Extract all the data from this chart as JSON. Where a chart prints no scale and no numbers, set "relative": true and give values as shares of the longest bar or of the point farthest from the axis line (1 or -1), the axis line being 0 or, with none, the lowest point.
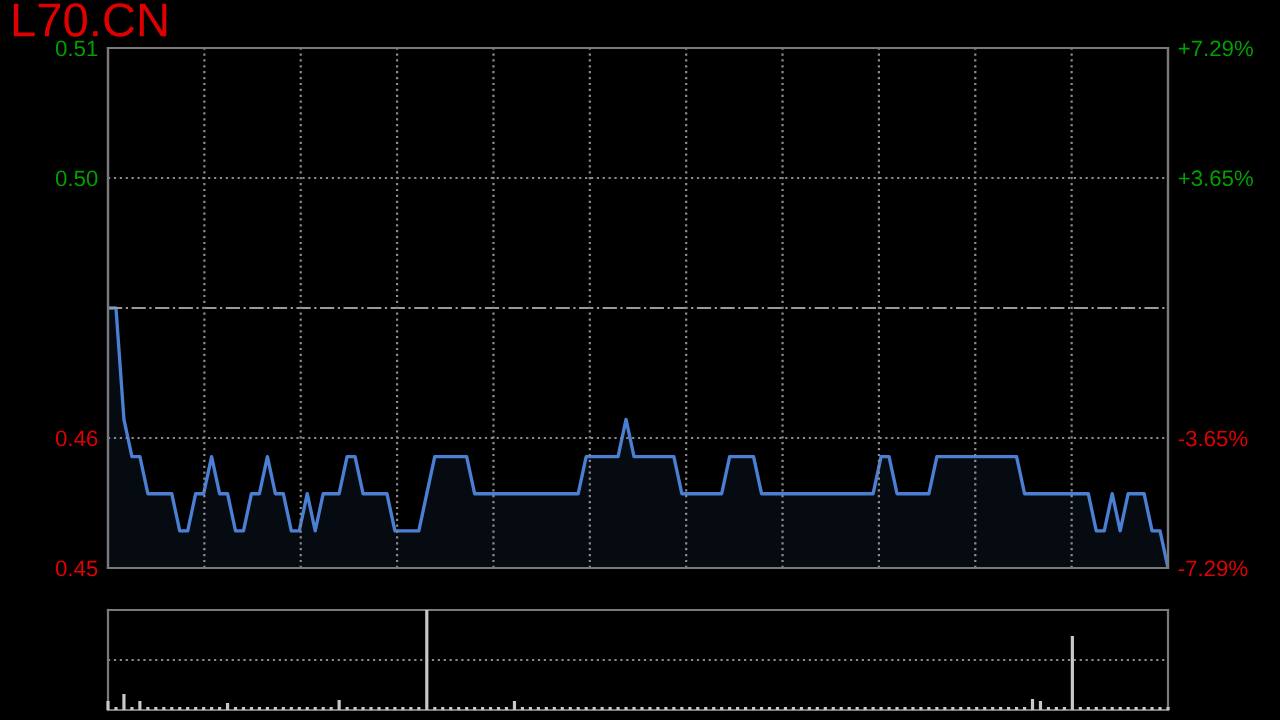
{
  "chart_data": [
    {
      "type": "area",
      "title": "L70.CN",
      "grid": true,
      "categories": [
        null,
        null,
        null,
        null,
        null,
        null,
        null,
        null,
        null,
        null,
        null,
        null,
        null,
        null,
        null,
        null,
        null,
        null,
        null,
        null,
        null,
        null,
        null,
        null,
        null,
        null,
        null,
        null,
        null,
        null,
        null,
        null,
        null,
        null,
        null,
        null,
        null,
        null,
        null,
        null,
        null,
        null,
        null,
        null,
        null,
        null,
        null,
        null,
        null,
        null,
        null,
        null,
        null,
        null,
        null,
        null,
        null,
        null,
        null,
        null,
        null,
        null,
        null,
        null,
        null,
        null,
        null,
        null,
        null,
        null,
        null,
        null,
        null,
        null,
        null,
        null,
        null,
        null,
        null,
        null,
        null,
        null,
        null,
        null,
        null,
        null,
        null,
        null,
        null,
        null,
        null,
        null,
        null,
        null,
        null,
        null,
        null,
        null,
        null,
        null,
        null,
        null,
        null,
        null,
        null,
        null,
        null,
        null,
        null,
        null,
        null,
        null,
        null,
        null,
        null,
        null,
        null,
        null,
        null,
        null,
        null,
        null,
        null,
        null,
        null,
        null,
        null,
        null,
        null,
        null,
        null,
        null,
        null,
        null
      ],
      "ylim": [
        0.445,
        0.515
      ],
      "yticks": [
        {
          "value": 0.445,
          "label": "0.45"
        },
        {
          "value": 0.4625,
          "label": "0.46"
        },
        {
          "value": 0.48,
          "label": null
        },
        {
          "value": 0.4975,
          "label": "0.50"
        },
        {
          "value": 0.515,
          "label": "0.51"
        }
      ],
      "y2lim": [
        -7.29,
        7.29
      ],
      "y2ticks": [
        {
          "value": -7.29,
          "label": "-7.29%"
        },
        {
          "value": -3.65,
          "label": "-3.65%"
        },
        {
          "value": 3.65,
          "label": "+3.65%"
        },
        {
          "value": 7.29,
          "label": "+7.29%"
        }
      ],
      "ref_lines": [
        {
          "axis": "y",
          "value": 0.48,
          "label": null,
          "color": "#9a9a9a",
          "line_style": "dashdot"
        }
      ],
      "series": [
        {
          "color": "#4a7fd4",
          "values": [
            0.48,
            0.48,
            0.465,
            0.46,
            0.46,
            0.455,
            0.455,
            0.455,
            0.455,
            0.45,
            0.45,
            0.455,
            0.455,
            0.46,
            0.455,
            0.455,
            0.45,
            0.45,
            0.455,
            0.455,
            0.46,
            0.455,
            0.455,
            0.45,
            0.45,
            0.455,
            0.45,
            0.455,
            0.455,
            0.455,
            0.46,
            0.46,
            0.455,
            0.455,
            0.455,
            0.455,
            0.45,
            0.45,
            0.45,
            0.45,
            0.455,
            0.46,
            0.46,
            0.46,
            0.46,
            0.46,
            0.455,
            0.455,
            0.455,
            0.455,
            0.455,
            0.455,
            0.455,
            0.455,
            0.455,
            0.455,
            0.455,
            0.455,
            0.455,
            0.455,
            0.46,
            0.46,
            0.46,
            0.46,
            0.46,
            0.465,
            0.46,
            0.46,
            0.46,
            0.46,
            0.46,
            0.46,
            0.455,
            0.455,
            0.455,
            0.455,
            0.455,
            0.455,
            0.46,
            0.46,
            0.46,
            0.46,
            0.455,
            0.455,
            0.455,
            0.455,
            0.455,
            0.455,
            0.455,
            0.455,
            0.455,
            0.455,
            0.455,
            0.455,
            0.455,
            0.455,
            0.455,
            0.46,
            0.46,
            0.455,
            0.455,
            0.455,
            0.455,
            0.455,
            0.46,
            0.46,
            0.46,
            0.46,
            0.46,
            0.46,
            0.46,
            0.46,
            0.46,
            0.46,
            0.46,
            0.455,
            0.455,
            0.455,
            0.455,
            0.455,
            0.455,
            0.455,
            0.455,
            0.455,
            0.45,
            0.45,
            0.455,
            0.45,
            0.455,
            0.455,
            0.455,
            0.45,
            0.45,
            0.445
          ]
        }
      ]
    },
    {
      "type": "bar",
      "relative": true,
      "tick_labels": false,
      "ref_lines": [
        {
          "axis": "y",
          "value": 0.5,
          "label": null,
          "color": "#8a8a8a",
          "line_style": "dotted"
        }
      ],
      "categories": [
        null,
        null,
        null,
        null,
        null,
        null,
        null,
        null,
        null,
        null,
        null,
        null,
        null,
        null,
        null,
        null,
        null,
        null,
        null,
        null,
        null,
        null,
        null,
        null,
        null,
        null,
        null,
        null,
        null,
        null,
        null,
        null,
        null,
        null,
        null,
        null,
        null,
        null,
        null,
        null,
        null,
        null,
        null,
        null,
        null,
        null,
        null,
        null,
        null,
        null,
        null,
        null,
        null,
        null,
        null,
        null,
        null,
        null,
        null,
        null,
        null,
        null,
        null,
        null,
        null,
        null,
        null,
        null,
        null,
        null,
        null,
        null,
        null,
        null,
        null,
        null,
        null,
        null,
        null,
        null,
        null,
        null,
        null,
        null,
        null,
        null,
        null,
        null,
        null,
        null,
        null,
        null,
        null,
        null,
        null,
        null,
        null,
        null,
        null,
        null,
        null,
        null,
        null,
        null,
        null,
        null,
        null,
        null,
        null,
        null,
        null,
        null,
        null,
        null,
        null,
        null,
        null,
        null,
        null,
        null,
        null,
        null,
        null,
        null,
        null,
        null,
        null,
        null,
        null,
        null,
        null,
        null,
        null,
        null
      ],
      "series": [
        {
          "color": "#c8c8c8",
          "values": [
            0.09,
            0.03,
            0.16,
            0.03,
            0.09,
            0.03,
            0.03,
            0.03,
            0.03,
            0.03,
            0.03,
            0.03,
            0.03,
            0.03,
            0.03,
            0.07,
            0.03,
            0.03,
            0.03,
            0.03,
            0.03,
            0.03,
            0.03,
            0.03,
            0.03,
            0.03,
            0.03,
            0.03,
            0.03,
            0.1,
            0.03,
            0.03,
            0.03,
            0.03,
            0.03,
            0.03,
            0.03,
            0.03,
            0.03,
            0.03,
            1.0,
            0.03,
            0.03,
            0.03,
            0.03,
            0.03,
            0.03,
            0.03,
            0.03,
            0.03,
            0.03,
            0.09,
            0.03,
            0.03,
            0.03,
            0.03,
            0.03,
            0.03,
            0.03,
            0.03,
            0.03,
            0.03,
            0.03,
            0.03,
            0.03,
            0.03,
            0.03,
            0.03,
            0.03,
            0.03,
            0.03,
            0.03,
            0.03,
            0.03,
            0.03,
            0.03,
            0.03,
            0.03,
            0.03,
            0.03,
            0.03,
            0.03,
            0.03,
            0.03,
            0.03,
            0.03,
            0.03,
            0.03,
            0.03,
            0.03,
            0.03,
            0.03,
            0.03,
            0.03,
            0.03,
            0.03,
            0.03,
            0.03,
            0.03,
            0.03,
            0.03,
            0.03,
            0.03,
            0.03,
            0.03,
            0.03,
            0.03,
            0.03,
            0.03,
            0.03,
            0.03,
            0.03,
            0.03,
            0.03,
            0.03,
            0.03,
            0.11,
            0.09,
            0.03,
            0.03,
            0.03,
            0.74,
            0.03,
            0.03,
            0.03,
            0.03,
            0.03,
            0.03,
            0.03,
            0.03,
            0.03,
            0.03,
            0.03,
            0.03
          ]
        }
      ]
    }
  ]
}
